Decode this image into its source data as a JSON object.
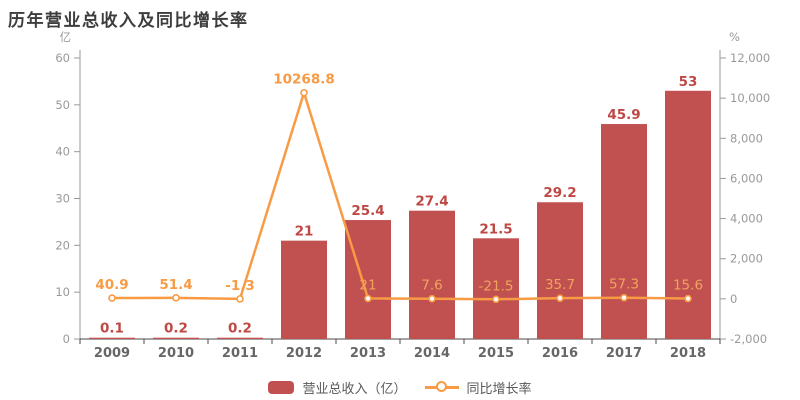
{
  "title": "历年营业总收入及同比增长率",
  "legend": {
    "bar_label": "营业总收入（亿）",
    "line_label": "同比增长率"
  },
  "colors": {
    "bar": "#c05150",
    "bar_label": "#bf4845",
    "line": "#f89b44",
    "line_label_light": "#f1a35c",
    "axis_text": "#999999",
    "year_text": "#666666",
    "axis_line": "#9a9a9a",
    "bottom_axis": "#4a4a4a",
    "legend_text": "#595959",
    "title_text": "#3d3d3d",
    "background": "#ffffff"
  },
  "chart_data": {
    "type": "bar+line",
    "title": "历年营业总收入及同比增长率",
    "categories": [
      "2009",
      "2010",
      "2011",
      "2012",
      "2013",
      "2014",
      "2015",
      "2016",
      "2017",
      "2018"
    ],
    "series": [
      {
        "name": "营业总收入（亿）",
        "type": "bar",
        "axis": "left",
        "values": [
          0.1,
          0.2,
          0.2,
          21,
          25.4,
          27.4,
          21.5,
          29.2,
          45.9,
          53
        ],
        "labels": [
          "0.1",
          "0.2",
          "0.2",
          "21",
          "25.4",
          "27.4",
          "21.5",
          "29.2",
          "45.9",
          "53"
        ]
      },
      {
        "name": "同比增长率",
        "type": "line",
        "axis": "right",
        "values": [
          40.9,
          51.4,
          -1.3,
          10268.8,
          21,
          7.6,
          -21.5,
          35.7,
          57.3,
          15.6
        ],
        "labels": [
          "40.9",
          "51.4",
          "-1.3",
          "10268.8",
          "21",
          "7.6",
          "-21.5",
          "35.7",
          "57.3",
          "15.6"
        ],
        "label_bold": [
          true,
          true,
          true,
          true,
          false,
          false,
          false,
          false,
          false,
          false
        ]
      }
    ],
    "left_axis": {
      "unit": "亿",
      "min": 0,
      "max": 60,
      "ticks": [
        0,
        10,
        20,
        30,
        40,
        50,
        60
      ]
    },
    "right_axis": {
      "unit": "%",
      "min": -2000,
      "max": 12000,
      "ticks": [
        -2000,
        0,
        2000,
        4000,
        6000,
        8000,
        10000,
        12000
      ],
      "tick_labels": [
        "-2,000",
        "0",
        "2,000",
        "4,000",
        "6,000",
        "8,000",
        "10,000",
        "12,000"
      ]
    },
    "grid": false,
    "legend_position": "bottom"
  }
}
